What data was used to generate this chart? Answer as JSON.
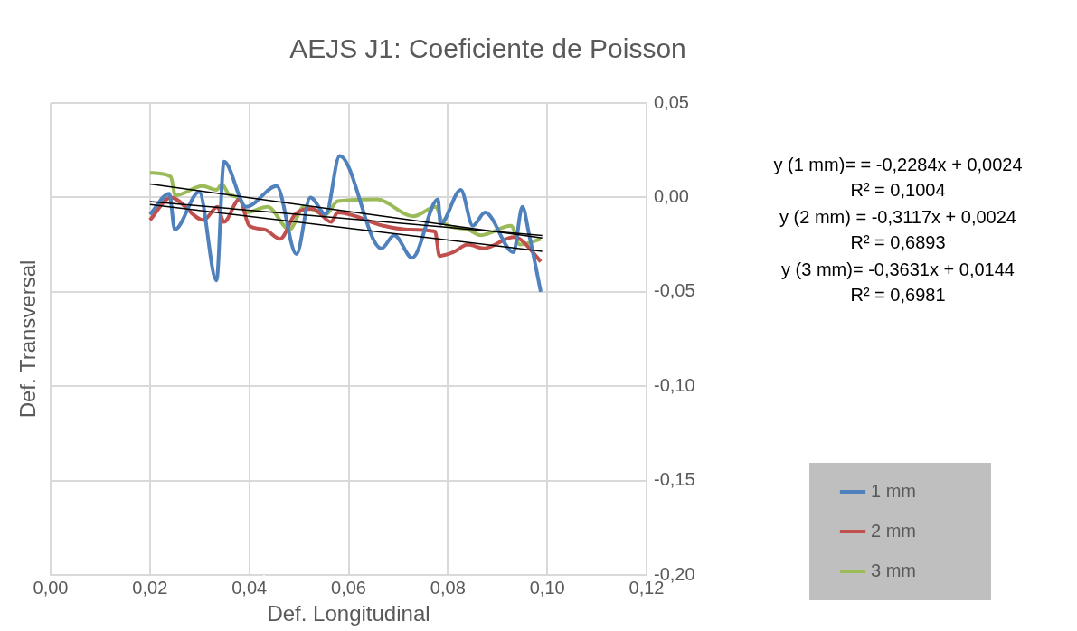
{
  "chart_data": {
    "type": "line",
    "title": "AEJS J1: Coeficiente de Poisson",
    "xlabel": "Def. Longitudinal",
    "ylabel": "Def. Transversal",
    "xlim": [
      0,
      0.12
    ],
    "xticks": [
      {
        "value": 0,
        "label": "0,00"
      },
      {
        "value": 0.02,
        "label": "0,02"
      },
      {
        "value": 0.04,
        "label": "0,04"
      },
      {
        "value": 0.06,
        "label": "0,06"
      },
      {
        "value": 0.08,
        "label": "0,08"
      },
      {
        "value": 0.1,
        "label": "0,10"
      },
      {
        "value": 0.12,
        "label": "0,12"
      }
    ],
    "ylim": [
      -0.2,
      0.05
    ],
    "yticks": [
      {
        "value": -0.2,
        "label": "-0,20"
      },
      {
        "value": -0.15,
        "label": "-0,15"
      },
      {
        "value": -0.1,
        "label": "-0,10"
      },
      {
        "value": -0.05,
        "label": "-0,05"
      },
      {
        "value": 0,
        "label": "0,00"
      },
      {
        "value": 0.05,
        "label": "0,05"
      }
    ],
    "grid": true,
    "legend": "right",
    "marker": "none",
    "annotations": [
      "y (1 mm)= = -0,2284x + 0,0024",
      "R² = 0,1004",
      "y (2 mm) = -0,3117x + 0,0024",
      "R² = 0,6893",
      "y  (3 mm)= -0,3631x + 0,0144",
      "R² = 0,6981"
    ],
    "series": [
      {
        "name": "1 mm",
        "color": "#4f81bd",
        "x": [
          0.02,
          0.0239,
          0.025,
          0.0299,
          0.0334,
          0.0349,
          0.0394,
          0.0455,
          0.0495,
          0.0523,
          0.0554,
          0.0582,
          0.0666,
          0.0692,
          0.0728,
          0.078,
          0.0785,
          0.0826,
          0.085,
          0.0875,
          0.0932,
          0.095,
          0.0963,
          0.0987
        ],
        "values": [
          -0.009,
          0.002,
          -0.017,
          0.003,
          -0.044,
          0.019,
          -0.005,
          0.006,
          -0.03,
          0,
          -0.009,
          0.022,
          -0.027,
          -0.02,
          -0.032,
          -0.001,
          -0.014,
          0.004,
          -0.015,
          -0.008,
          -0.029,
          -0.005,
          -0.019,
          -0.05
        ]
      },
      {
        "name": "2 mm",
        "color": "#c0504d",
        "x": [
          0.02,
          0.0242,
          0.0308,
          0.0336,
          0.0349,
          0.038,
          0.04,
          0.0431,
          0.0462,
          0.0492,
          0.0528,
          0.0565,
          0.0578,
          0.067,
          0.0719,
          0.0774,
          0.0783,
          0.0811,
          0.084,
          0.0872,
          0.0932,
          0.0945,
          0.0987
        ],
        "values": [
          -0.012,
          0,
          -0.012,
          -0.005,
          -0.013,
          -0.001,
          -0.015,
          -0.017,
          -0.022,
          -0.009,
          -0.006,
          -0.013,
          -0.008,
          -0.015,
          -0.017,
          -0.018,
          -0.031,
          -0.029,
          -0.025,
          -0.027,
          -0.021,
          -0.022,
          -0.034
        ]
      },
      {
        "name": "3 mm",
        "color": "#9bbb59",
        "x": [
          0.02,
          0.0242,
          0.0251,
          0.0306,
          0.0334,
          0.0345,
          0.0358,
          0.0382,
          0.0394,
          0.0437,
          0.0481,
          0.051,
          0.0554,
          0.0578,
          0.0657,
          0.073,
          0.0776,
          0.0789,
          0.084,
          0.0866,
          0.0927,
          0.0945,
          0.0987
        ],
        "values": [
          0.013,
          0.011,
          0.001,
          0.006,
          0.004,
          0.007,
          0.002,
          -0.001,
          -0.008,
          -0.005,
          -0.017,
          -0.005,
          -0.009,
          -0.002,
          -0.001,
          -0.01,
          -0.005,
          -0.013,
          -0.017,
          -0.02,
          -0.015,
          -0.025,
          -0.022
        ]
      },
      {
        "type": "line",
        "color": "#000000",
        "x": [
          0.02,
          0.099
        ],
        "values": [
          -0.0022,
          -0.0202
        ]
      },
      {
        "type": "line",
        "color": "#000000",
        "x": [
          0.02,
          0.099
        ],
        "values": [
          -0.0038,
          -0.0285
        ]
      },
      {
        "type": "line",
        "color": "#000000",
        "x": [
          0.02,
          0.099
        ],
        "values": [
          0.0071,
          -0.0215
        ]
      }
    ]
  }
}
